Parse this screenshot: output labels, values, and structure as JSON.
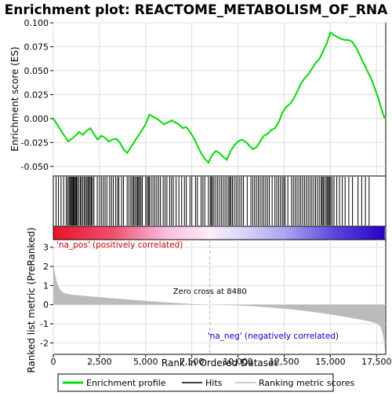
{
  "chart_data": {
    "type": "line",
    "title": "Enrichment plot: REACTOME_METABOLISM_OF_RNA",
    "xlabel": "Rank in Ordered Dataset",
    "es_ylabel": "Enrichment score (ES)",
    "metric_ylabel": "Ranked list metric (PreRanked)",
    "x_range": [
      0,
      18000
    ],
    "x_ticks": [
      0,
      2500,
      5000,
      7500,
      10000,
      12500,
      15000,
      17500
    ],
    "x_tick_labels": [
      "0",
      "2,500",
      "5,000",
      "7,500",
      "10,000",
      "12,500",
      "15,000",
      "17,500"
    ],
    "es_range": [
      -0.06,
      0.1
    ],
    "es_ticks": [
      -0.05,
      -0.025,
      0.0,
      0.025,
      0.05,
      0.075,
      0.1
    ],
    "es_tick_labels": [
      "-0.050",
      "-0.025",
      "0.000",
      "0.025",
      "0.050",
      "0.075",
      "0.100"
    ],
    "metric_range": [
      -2.6,
      3.4
    ],
    "metric_ticks": [
      -2,
      -1,
      0,
      1,
      2,
      3
    ],
    "metric_tick_labels": [
      "-2",
      "-1",
      "0",
      "1",
      "2",
      "3"
    ],
    "zero_cross_rank": 8480,
    "zero_cross_label": "Zero cross at 8480",
    "pos_label": "'na_pos' (positively correlated)",
    "neg_label": "'na_neg' (negatively correlated)",
    "series": [
      {
        "name": "Enrichment profile",
        "color": "#00dd00",
        "x": [
          0,
          200,
          400,
          600,
          800,
          1000,
          1200,
          1400,
          1600,
          1800,
          2000,
          2200,
          2400,
          2600,
          2800,
          3000,
          3200,
          3400,
          3600,
          3800,
          4000,
          4200,
          4400,
          4600,
          4800,
          5000,
          5200,
          5400,
          5600,
          5800,
          6000,
          6200,
          6400,
          6600,
          6800,
          7000,
          7200,
          7400,
          7600,
          7800,
          8000,
          8200,
          8400,
          8600,
          8800,
          9000,
          9200,
          9400,
          9600,
          9800,
          10000,
          10200,
          10400,
          10600,
          10800,
          11000,
          11200,
          11400,
          11600,
          11800,
          12000,
          12200,
          12400,
          12600,
          12800,
          13000,
          13200,
          13400,
          13600,
          13800,
          14000,
          14200,
          14400,
          14600,
          14800,
          15000,
          15200,
          15400,
          15600,
          15800,
          16000,
          16200,
          16400,
          16600,
          16800,
          17000,
          17200,
          17400,
          17600,
          17800,
          17950
        ],
        "values": [
          0.0,
          -0.006,
          -0.012,
          -0.018,
          -0.024,
          -0.021,
          -0.018,
          -0.014,
          -0.017,
          -0.013,
          -0.01,
          -0.016,
          -0.022,
          -0.018,
          -0.02,
          -0.024,
          -0.022,
          -0.021,
          -0.025,
          -0.032,
          -0.036,
          -0.03,
          -0.024,
          -0.018,
          -0.012,
          -0.006,
          0.004,
          0.002,
          0.0,
          -0.003,
          -0.006,
          -0.004,
          -0.002,
          -0.004,
          -0.006,
          -0.01,
          -0.009,
          -0.014,
          -0.02,
          -0.028,
          -0.036,
          -0.042,
          -0.046,
          -0.038,
          -0.034,
          -0.036,
          -0.04,
          -0.043,
          -0.034,
          -0.028,
          -0.024,
          -0.022,
          -0.024,
          -0.028,
          -0.032,
          -0.03,
          -0.024,
          -0.018,
          -0.016,
          -0.012,
          -0.01,
          -0.004,
          0.006,
          0.012,
          0.015,
          0.02,
          0.028,
          0.036,
          0.042,
          0.046,
          0.052,
          0.058,
          0.062,
          0.07,
          0.078,
          0.09,
          0.087,
          0.085,
          0.083,
          0.082,
          0.082,
          0.08,
          0.074,
          0.066,
          0.058,
          0.05,
          0.042,
          0.032,
          0.021,
          0.008,
          0.0
        ]
      },
      {
        "name": "Hits",
        "color": "#000000"
      },
      {
        "name": "Ranking metric scores",
        "color": "#bbbbbb"
      }
    ],
    "hits": [
      150,
      280,
      420,
      560,
      700,
      780,
      850,
      900,
      960,
      1010,
      1060,
      1100,
      1150,
      1200,
      1250,
      1300,
      1380,
      1460,
      1520,
      1600,
      1680,
      1750,
      1820,
      1880,
      1940,
      2000,
      2060,
      2120,
      2200,
      2380,
      2500,
      2600,
      2700,
      2800,
      2900,
      3050,
      3150,
      3250,
      3380,
      3480,
      3550,
      3700,
      3800,
      4000,
      4100,
      4200,
      4280,
      4350,
      4420,
      4500,
      4560,
      4620,
      4680,
      4750,
      4820,
      5000,
      5080,
      5150,
      5200,
      5300,
      5400,
      5500,
      5600,
      5700,
      5800,
      5950,
      6050,
      6150,
      6300,
      6400,
      6500,
      6650,
      6800,
      6950,
      7100,
      7200,
      7400,
      7500,
      7700,
      7800,
      8000,
      8100,
      8200,
      8400,
      8500,
      8560,
      8620,
      8700,
      8800,
      8900,
      9000,
      9100,
      9200,
      9300,
      9400,
      9500,
      9560,
      9620,
      9700,
      9800,
      9900,
      10000,
      10100,
      10200,
      10300,
      10500,
      10700,
      10800,
      10900,
      11000,
      11100,
      11200,
      11300,
      11400,
      11500,
      11600,
      11700,
      11850,
      12000,
      12100,
      12200,
      12300,
      12400,
      12480,
      12550,
      12700,
      12900,
      13000,
      13100,
      13200,
      13300,
      13400,
      13500,
      13600,
      13700,
      13800,
      13900,
      14000,
      14100,
      14200,
      14300,
      14400,
      14500,
      14560,
      14620,
      14700,
      14780,
      14850,
      14900,
      14960,
      15020,
      15100,
      15200,
      15350,
      15500,
      15650,
      15800,
      16000,
      16200,
      16500,
      16700,
      16900,
      17100
    ]
  }
}
